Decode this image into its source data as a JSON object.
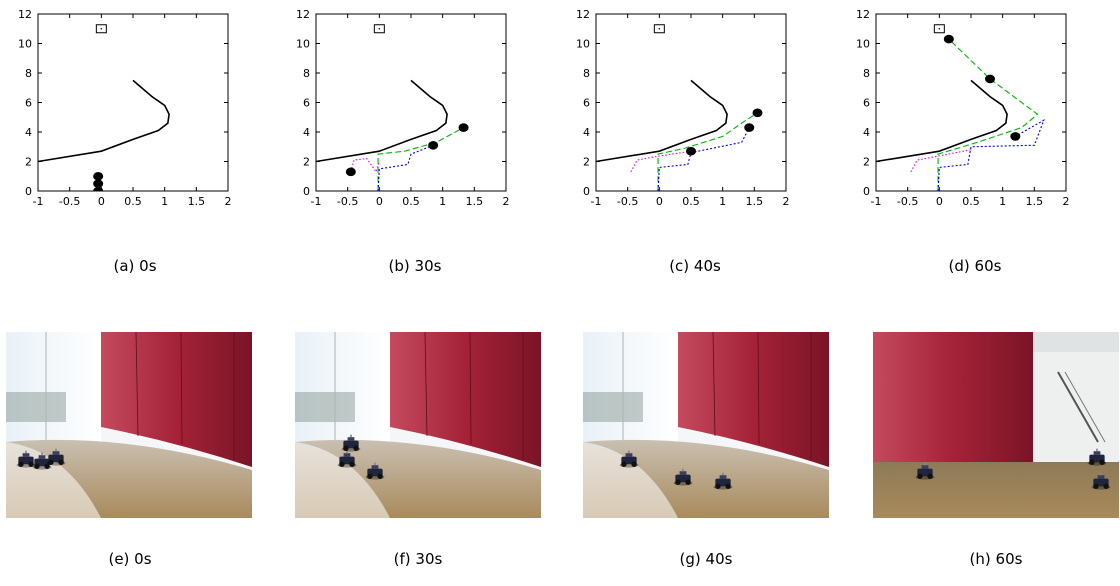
{
  "plot_captions": [
    "(a) 0s",
    "(b) 30s",
    "(c) 40s",
    "(d) 60s"
  ],
  "photo_captions": [
    "(e) 0s",
    "(f) 30s",
    "(g) 40s",
    "(h) 60s"
  ],
  "colors": {
    "wall_path": "#000000",
    "robot_green": "#00b400",
    "robot_blue": "#0000e0",
    "robot_magenta": "#e000e0",
    "robot_marker": "#000000",
    "wall_red": "#a52238",
    "floor": "#a98a5c"
  },
  "chart_data": [
    {
      "type": "line",
      "xlim": [
        -1,
        2
      ],
      "ylim": [
        0,
        12
      ],
      "xticks": [
        "-1",
        "-0.5",
        "0",
        "0.5",
        "1",
        "1.5",
        "2"
      ],
      "yticks": [
        "0",
        "2",
        "4",
        "6",
        "8",
        "10",
        "12"
      ],
      "goal": [
        0,
        11
      ],
      "wall": [
        [
          -1,
          2.0
        ],
        [
          0,
          2.7
        ],
        [
          0.5,
          3.5
        ],
        [
          0.9,
          4.1
        ],
        [
          1.05,
          4.6
        ],
        [
          1.07,
          5.2
        ],
        [
          1.0,
          5.8
        ],
        [
          0.8,
          6.4
        ],
        [
          0.5,
          7.5
        ]
      ],
      "robots": [
        [
          -0.05,
          0.0
        ],
        [
          -0.05,
          0.5
        ],
        [
          -0.05,
          1.0
        ]
      ],
      "series": []
    },
    {
      "type": "line",
      "xlim": [
        -1,
        2
      ],
      "ylim": [
        0,
        12
      ],
      "xticks": [
        "-1",
        "-0.5",
        "0",
        "0.5",
        "1",
        "1.5",
        "2"
      ],
      "yticks": [
        "0",
        "2",
        "4",
        "6",
        "8",
        "10",
        "12"
      ],
      "goal": [
        0,
        11
      ],
      "wall": [
        [
          -1,
          2.0
        ],
        [
          0,
          2.7
        ],
        [
          0.5,
          3.5
        ],
        [
          0.9,
          4.1
        ],
        [
          1.05,
          4.6
        ],
        [
          1.07,
          5.2
        ],
        [
          1.0,
          5.8
        ],
        [
          0.8,
          6.4
        ],
        [
          0.5,
          7.5
        ]
      ],
      "robots": [
        [
          -0.45,
          1.3
        ],
        [
          0.85,
          3.1
        ],
        [
          1.33,
          4.3
        ]
      ],
      "series": [
        {
          "color": "green",
          "points": [
            [
              -0.02,
              0.0
            ],
            [
              -0.02,
              2.5
            ],
            [
              0.4,
              2.7
            ],
            [
              0.9,
              3.3
            ],
            [
              1.33,
              4.3
            ]
          ]
        },
        {
          "color": "blue",
          "points": [
            [
              -0.02,
              0.0
            ],
            [
              0.0,
              1.5
            ],
            [
              0.45,
              1.8
            ],
            [
              0.5,
              2.5
            ],
            [
              0.85,
              3.1
            ]
          ]
        },
        {
          "color": "magenta",
          "points": [
            [
              -0.45,
              1.3
            ],
            [
              -0.4,
              2.1
            ],
            [
              -0.2,
              2.2
            ],
            [
              -0.05,
              1.3
            ],
            [
              0.0,
              2.0
            ]
          ]
        }
      ]
    },
    {
      "type": "line",
      "xlim": [
        -1,
        2
      ],
      "ylim": [
        0,
        12
      ],
      "xticks": [
        "-1",
        "-0.5",
        "0",
        "0.5",
        "1",
        "1.5",
        "2"
      ],
      "yticks": [
        "0",
        "2",
        "4",
        "6",
        "8",
        "10",
        "12"
      ],
      "goal": [
        0,
        11
      ],
      "wall": [
        [
          -1,
          2.0
        ],
        [
          0,
          2.7
        ],
        [
          0.5,
          3.5
        ],
        [
          0.9,
          4.1
        ],
        [
          1.05,
          4.6
        ],
        [
          1.07,
          5.2
        ],
        [
          1.0,
          5.8
        ],
        [
          0.8,
          6.4
        ],
        [
          0.5,
          7.5
        ]
      ],
      "robots": [
        [
          0.5,
          2.7
        ],
        [
          1.42,
          4.3
        ],
        [
          1.55,
          5.3
        ]
      ],
      "series": [
        {
          "color": "green",
          "points": [
            [
              -0.02,
              0.0
            ],
            [
              -0.02,
              2.5
            ],
            [
              0.4,
              2.9
            ],
            [
              1.0,
              3.7
            ],
            [
              1.3,
              4.6
            ],
            [
              1.55,
              5.3
            ]
          ]
        },
        {
          "color": "blue",
          "points": [
            [
              -0.02,
              0.0
            ],
            [
              0.0,
              1.6
            ],
            [
              0.45,
              1.8
            ],
            [
              0.5,
              2.6
            ],
            [
              1.3,
              3.3
            ],
            [
              1.42,
              4.3
            ]
          ]
        },
        {
          "color": "magenta",
          "points": [
            [
              -0.45,
              1.3
            ],
            [
              -0.35,
              2.1
            ],
            [
              -0.1,
              2.3
            ],
            [
              0.5,
              2.7
            ]
          ]
        }
      ]
    },
    {
      "type": "line",
      "xlim": [
        -1,
        2
      ],
      "ylim": [
        0,
        12
      ],
      "xticks": [
        "-1",
        "-0.5",
        "0",
        "0.5",
        "1",
        "1.5",
        "2"
      ],
      "yticks": [
        "0",
        "2",
        "4",
        "6",
        "8",
        "10",
        "12"
      ],
      "goal": [
        0,
        11
      ],
      "wall": [
        [
          -1,
          2.0
        ],
        [
          0,
          2.7
        ],
        [
          0.5,
          3.5
        ],
        [
          0.9,
          4.1
        ],
        [
          1.05,
          4.6
        ],
        [
          1.07,
          5.2
        ],
        [
          1.0,
          5.8
        ],
        [
          0.8,
          6.4
        ],
        [
          0.5,
          7.5
        ]
      ],
      "robots": [
        [
          0.15,
          10.3
        ],
        [
          0.8,
          7.6
        ],
        [
          1.2,
          3.7
        ]
      ],
      "series": [
        {
          "color": "green",
          "points": [
            [
              -0.02,
              0.0
            ],
            [
              -0.02,
              2.5
            ],
            [
              0.6,
              3.3
            ],
            [
              1.3,
              4.3
            ],
            [
              1.55,
              5.2
            ],
            [
              0.8,
              7.6
            ],
            [
              0.15,
              10.3
            ]
          ]
        },
        {
          "color": "blue",
          "points": [
            [
              -0.02,
              0.0
            ],
            [
              0.0,
              1.6
            ],
            [
              0.45,
              1.8
            ],
            [
              0.5,
              3.0
            ],
            [
              1.5,
              3.1
            ],
            [
              1.65,
              4.8
            ],
            [
              1.2,
              3.7
            ]
          ]
        },
        {
          "color": "magenta",
          "points": [
            [
              -0.45,
              1.3
            ],
            [
              -0.35,
              2.1
            ],
            [
              -0.1,
              2.3
            ],
            [
              0.5,
              2.8
            ]
          ]
        }
      ]
    }
  ],
  "photos": [
    {
      "robots": [
        [
          20,
          128
        ],
        [
          36,
          130
        ],
        [
          50,
          126
        ]
      ]
    },
    {
      "robots": [
        [
          52,
          128
        ],
        [
          80,
          140
        ],
        [
          56,
          112
        ]
      ]
    },
    {
      "robots": [
        [
          46,
          128
        ],
        [
          100,
          146
        ],
        [
          140,
          150
        ]
      ]
    },
    {
      "robots": [
        [
          52,
          140
        ],
        [
          224,
          126
        ],
        [
          228,
          150
        ]
      ]
    }
  ]
}
